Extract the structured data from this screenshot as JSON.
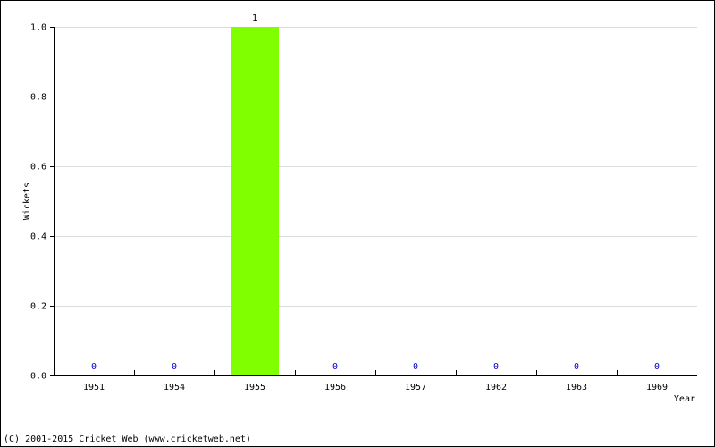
{
  "chart_data": {
    "type": "bar",
    "categories": [
      "1951",
      "1954",
      "1955",
      "1956",
      "1957",
      "1962",
      "1963",
      "1969"
    ],
    "values": [
      0,
      0,
      1,
      0,
      0,
      0,
      0,
      0
    ],
    "color": "#7fff00",
    "x_label": "Year",
    "y_label": "Wickets",
    "ylim": [
      0,
      1
    ],
    "yticks": [
      {
        "value": 0,
        "label": "0.0"
      },
      {
        "value": 0.2,
        "label": "0.2"
      },
      {
        "value": 0.4,
        "label": "0.4"
      },
      {
        "value": 0.6,
        "label": "0.6"
      },
      {
        "value": 0.8,
        "label": "0.8"
      },
      {
        "value": 1,
        "label": "1.0"
      }
    ],
    "grid": true,
    "footer": "(C) 2001-2015 Cricket Web (www.cricketweb.net)"
  }
}
